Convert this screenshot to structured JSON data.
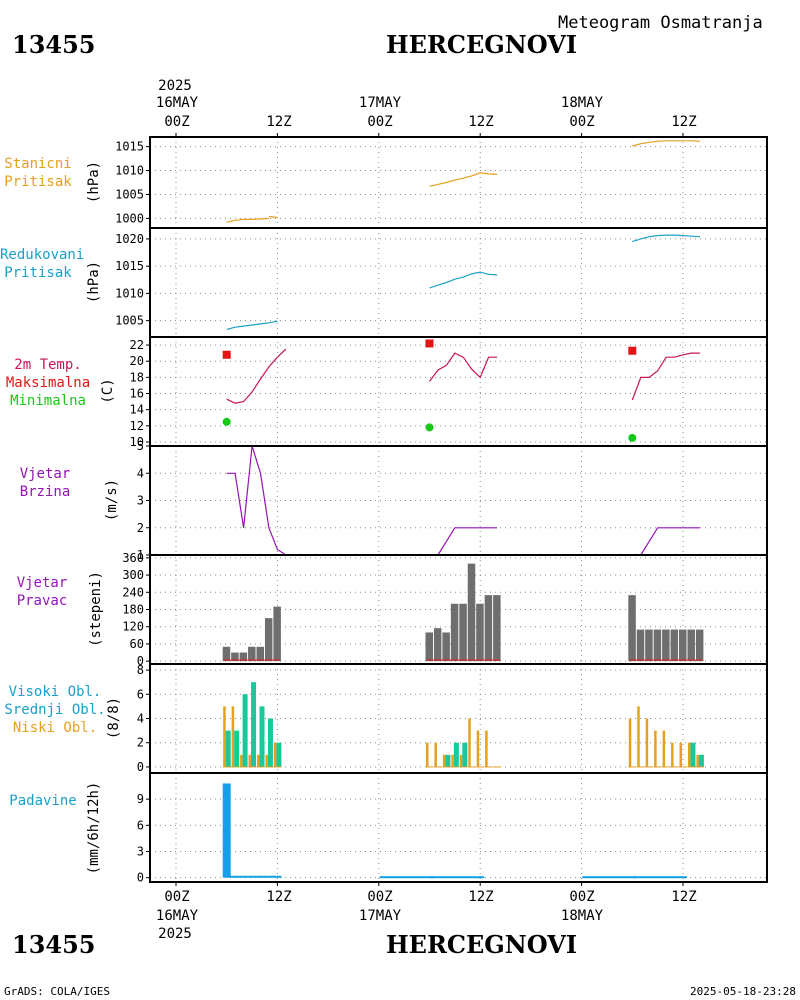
{
  "header": {
    "station_id": "13455",
    "station_name": "HERCEGNOVI",
    "title": "Meteogram Osmatranja"
  },
  "top_axis": {
    "year": "2025",
    "days": [
      "16MAY",
      "17MAY",
      "18MAY"
    ],
    "ticks": [
      "00Z",
      "12Z",
      "00Z",
      "12Z",
      "00Z",
      "12Z"
    ]
  },
  "bottom_axis": {
    "year": "2025",
    "days": [
      "16MAY",
      "17MAY",
      "18MAY"
    ],
    "ticks": [
      "00Z",
      "12Z",
      "00Z",
      "12Z",
      "00Z",
      "12Z"
    ]
  },
  "panels": {
    "station_pressure": {
      "lines": [
        "Stanicni",
        "Pritisak"
      ],
      "unit": "(hPa)",
      "color": "#e6a020"
    },
    "reduced_pressure": {
      "lines": [
        "Redukovani",
        "Pritisak"
      ],
      "unit": "(hPa)",
      "color": "#1aa0c8"
    },
    "temperature": {
      "lines": [
        {
          "text": "2m Temp.",
          "color": "#c8145a"
        },
        {
          "text": "Maksimalna",
          "color": "#e61414"
        },
        {
          "text": "Minimalna",
          "color": "#18c818"
        }
      ],
      "unit": "(C)"
    },
    "wind_speed": {
      "lines": [
        "Vjetar",
        "Brzina"
      ],
      "unit": "(m/s)",
      "color": "#9614b4"
    },
    "wind_direction": {
      "lines": [
        "Vjetar",
        "Pravac"
      ],
      "unit": "(stepeni)",
      "color": "#9614b4"
    },
    "clouds": {
      "lines": [
        {
          "text": "Visoki Obl.",
          "color": "#1aa0c8"
        },
        {
          "text": "Srednji Obl.",
          "color": "#1aa0c8"
        },
        {
          "text": "Niski Obl.",
          "color": "#e6a020"
        }
      ],
      "unit": "(8/8)"
    },
    "precipitation": {
      "lines": [
        "Padavine"
      ],
      "unit": "(mm/6h/12h)",
      "color": "#1aa0c8"
    }
  },
  "footer": {
    "left": "GrADS: COLA/IGES",
    "right": "2025-05-18-23:28"
  },
  "chart_data": [
    {
      "type": "line",
      "title": "Stanicni Pritisak",
      "ylabel": "(hPa)",
      "x_unit": "hours since 16MAY 00Z",
      "xlim": [
        -3,
        69
      ],
      "ylim": [
        998,
        1017
      ],
      "yticks": [
        1000,
        1005,
        1010,
        1015
      ],
      "color": "#e6a020",
      "segments": [
        [
          [
            6,
            999.2
          ],
          [
            7,
            999.6
          ],
          [
            8,
            999.8
          ],
          [
            9,
            999.8
          ],
          [
            10,
            999.9
          ],
          [
            11,
            1000.0
          ]
        ],
        [
          [
            11,
            1000.4
          ],
          [
            12,
            1000.2
          ]
        ],
        [
          [
            30,
            1006.7
          ],
          [
            31,
            1007.1
          ],
          [
            32,
            1007.5
          ],
          [
            33,
            1008.0
          ],
          [
            34,
            1008.4
          ],
          [
            35,
            1008.9
          ],
          [
            36,
            1009.5
          ],
          [
            37,
            1009.3
          ],
          [
            38,
            1009.2
          ]
        ],
        [
          [
            54,
            1015.1
          ],
          [
            55,
            1015.6
          ],
          [
            56,
            1015.9
          ],
          [
            57,
            1016.1
          ],
          [
            58,
            1016.2
          ],
          [
            59,
            1016.2
          ],
          [
            60,
            1016.2
          ],
          [
            61,
            1016.2
          ],
          [
            62,
            1016.1
          ]
        ]
      ]
    },
    {
      "type": "line",
      "title": "Redukovani Pritisak",
      "ylabel": "(hPa)",
      "x_unit": "hours since 16MAY 00Z",
      "xlim": [
        -3,
        69
      ],
      "ylim": [
        1002,
        1022
      ],
      "yticks": [
        1005,
        1010,
        1015,
        1020
      ],
      "color": "#1aa0c8",
      "segments": [
        [
          [
            6,
            1003.4
          ],
          [
            7,
            1003.8
          ],
          [
            8,
            1004.0
          ],
          [
            9,
            1004.2
          ],
          [
            10,
            1004.4
          ],
          [
            11,
            1004.6
          ],
          [
            12,
            1004.9
          ]
        ],
        [
          [
            30,
            1011.0
          ],
          [
            31,
            1011.5
          ],
          [
            32,
            1012.0
          ],
          [
            33,
            1012.6
          ],
          [
            34,
            1013.0
          ],
          [
            35,
            1013.6
          ],
          [
            36,
            1013.9
          ],
          [
            37,
            1013.5
          ],
          [
            38,
            1013.4
          ]
        ],
        [
          [
            54,
            1019.5
          ],
          [
            55,
            1020.0
          ],
          [
            56,
            1020.4
          ],
          [
            57,
            1020.6
          ],
          [
            58,
            1020.7
          ],
          [
            59,
            1020.7
          ],
          [
            60,
            1020.6
          ],
          [
            61,
            1020.5
          ],
          [
            62,
            1020.4
          ]
        ]
      ]
    },
    {
      "type": "line",
      "title": "2m Temp. / Maksimalna / Minimalna",
      "ylabel": "(C)",
      "x_unit": "hours since 16MAY 00Z",
      "xlim": [
        -3,
        69
      ],
      "ylim": [
        9.5,
        23
      ],
      "yticks": [
        10,
        12,
        14,
        16,
        18,
        20,
        22
      ],
      "color": "#c8145a",
      "segments": [
        [
          [
            6,
            15.3
          ],
          [
            7,
            14.8
          ],
          [
            8,
            15.0
          ],
          [
            9,
            16.2
          ],
          [
            10,
            17.8
          ],
          [
            11,
            19.3
          ],
          [
            12,
            20.5
          ],
          [
            13,
            21.5
          ]
        ],
        [
          [
            30,
            17.5
          ],
          [
            31,
            18.9
          ],
          [
            32,
            19.5
          ],
          [
            33,
            21.0
          ],
          [
            34,
            20.5
          ],
          [
            35,
            19.0
          ],
          [
            36,
            18.0
          ],
          [
            37,
            20.5
          ],
          [
            38,
            20.5
          ]
        ],
        [
          [
            54,
            15.2
          ],
          [
            55,
            18.0
          ],
          [
            56,
            18.0
          ],
          [
            57,
            18.8
          ],
          [
            58,
            20.5
          ],
          [
            59,
            20.5
          ],
          [
            60,
            20.8
          ],
          [
            61,
            21.0
          ],
          [
            62,
            21.0
          ]
        ]
      ],
      "max_points": [
        [
          6,
          20.8
        ],
        [
          30,
          22.2
        ],
        [
          54,
          21.3
        ]
      ],
      "min_points": [
        [
          6,
          12.5
        ],
        [
          30,
          11.8
        ],
        [
          54,
          10.5
        ]
      ],
      "max_color": "#e61414",
      "min_color": "#18c818"
    },
    {
      "type": "line",
      "title": "Vjetar Brzina",
      "ylabel": "(m/s)",
      "x_unit": "hours since 16MAY 00Z",
      "xlim": [
        -3,
        69
      ],
      "ylim": [
        1,
        5
      ],
      "yticks": [
        1,
        2,
        3,
        4,
        5
      ],
      "color": "#9614b4",
      "segments": [
        [
          [
            6,
            4
          ],
          [
            7,
            4
          ],
          [
            8,
            2
          ],
          [
            9,
            5
          ],
          [
            10,
            4
          ],
          [
            11,
            2
          ],
          [
            12,
            1.2
          ],
          [
            13,
            1
          ]
        ],
        [
          [
            30,
            1
          ],
          [
            31,
            1
          ],
          [
            32,
            1.5
          ],
          [
            33,
            2
          ],
          [
            34,
            2
          ],
          [
            35,
            2
          ],
          [
            36,
            2
          ],
          [
            37,
            2
          ],
          [
            38,
            2
          ]
        ],
        [
          [
            54,
            1
          ],
          [
            55,
            1
          ],
          [
            56,
            1.5
          ],
          [
            57,
            2
          ],
          [
            58,
            2
          ],
          [
            59,
            2
          ],
          [
            60,
            2
          ],
          [
            61,
            2
          ],
          [
            62,
            2
          ]
        ]
      ]
    },
    {
      "type": "bar",
      "title": "Vjetar Pravac",
      "ylabel": "(stepeni)",
      "x_unit": "hours since 16MAY 00Z",
      "xlim": [
        -3,
        69
      ],
      "ylim": [
        -10,
        370
      ],
      "yticks": [
        0,
        60,
        120,
        180,
        240,
        300,
        360
      ],
      "color": "#6e6e6e",
      "x": [
        6,
        7,
        8,
        9,
        10,
        11,
        12,
        30,
        31,
        32,
        33,
        34,
        35,
        36,
        37,
        38,
        54,
        55,
        56,
        57,
        58,
        59,
        60,
        61,
        62
      ],
      "values": [
        50,
        30,
        30,
        50,
        50,
        150,
        190,
        100,
        115,
        100,
        200,
        200,
        340,
        200,
        230,
        230,
        230,
        110,
        110,
        110,
        110,
        110,
        110,
        110,
        110
      ]
    },
    {
      "type": "bar",
      "title": "Visoki / Srednji / Niski Obl.",
      "ylabel": "(8/8)",
      "x_unit": "hours since 16MAY 00Z",
      "xlim": [
        -3,
        69
      ],
      "ylim": [
        -0.5,
        8.5
      ],
      "yticks": [
        0,
        2,
        4,
        6,
        8
      ],
      "x": [
        6,
        7,
        8,
        9,
        10,
        11,
        12,
        30,
        31,
        32,
        33,
        34,
        35,
        36,
        37,
        38,
        54,
        55,
        56,
        57,
        58,
        59,
        60,
        61,
        62
      ],
      "series": [
        {
          "name": "Niski Obl.",
          "color": "#e6a020",
          "values": [
            5,
            5,
            1,
            1,
            1,
            1,
            2,
            2,
            2,
            1,
            1,
            1,
            4,
            3,
            3,
            0,
            4,
            5,
            4,
            3,
            3,
            2,
            2,
            2,
            1
          ]
        },
        {
          "name": "Srednji Obl.",
          "color": "#19c89b",
          "values": [
            3,
            3,
            6,
            7,
            5,
            4,
            2,
            0,
            0,
            1,
            2,
            2,
            0,
            0,
            0,
            0,
            0,
            0,
            0,
            0,
            0,
            0,
            0,
            2,
            1
          ]
        },
        {
          "name": "Visoki Obl.",
          "color": "#1aa0c8",
          "values": [
            0,
            0,
            0,
            0,
            0,
            0,
            0,
            0,
            0,
            0,
            0,
            0,
            0,
            0,
            0,
            0,
            0,
            0,
            0,
            0,
            0,
            0,
            0,
            0,
            0
          ]
        }
      ]
    },
    {
      "type": "bar",
      "title": "Padavine",
      "ylabel": "(mm/6h/12h)",
      "x_unit": "hours since 16MAY 00Z",
      "xlim": [
        -3,
        69
      ],
      "ylim": [
        -0.5,
        12
      ],
      "yticks": [
        0,
        3,
        6,
        9
      ],
      "color": "#14a0e6",
      "x": [
        6,
        12,
        30,
        36,
        54,
        60
      ],
      "values": [
        10.8,
        0.1,
        0.05,
        0.05,
        0.05,
        0.05
      ]
    }
  ]
}
